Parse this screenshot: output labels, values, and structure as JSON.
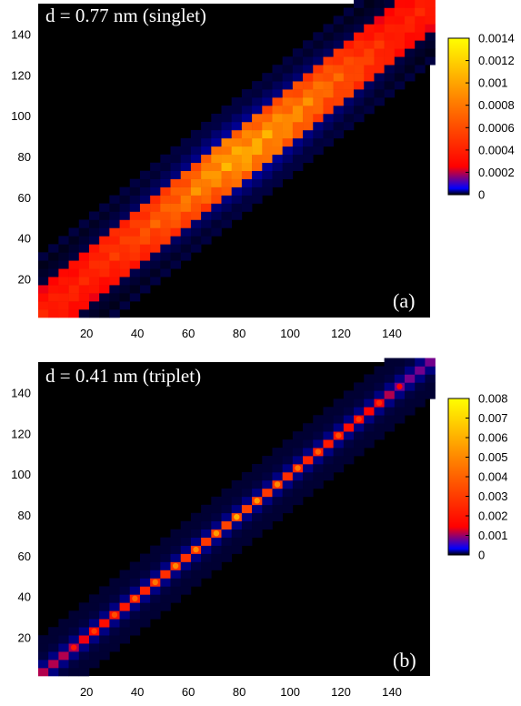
{
  "chart_data": [
    {
      "type": "heatmap",
      "title": "d = 0.77 nm (singlet)",
      "panel_label": "(a)",
      "x_ticks": [
        20,
        40,
        60,
        80,
        100,
        120,
        140
      ],
      "y_ticks": [
        20,
        40,
        60,
        80,
        100,
        120,
        140
      ],
      "xlim": [
        1,
        155
      ],
      "ylim": [
        1,
        155
      ],
      "colorbar": {
        "ticks": [
          0,
          0.0002,
          0.0004,
          0.0006,
          0.0008,
          0.001,
          0.0012,
          0.0014
        ],
        "tick_labels": [
          "0",
          "0.0002",
          "0.0004",
          "0.0006",
          "0.0008",
          "0.001",
          "0.0012",
          "0.0014"
        ],
        "range": [
          0,
          0.0014
        ]
      },
      "colormap": [
        "#000000",
        "#0000ff",
        "#ff0000",
        "#ff8000",
        "#ffff00"
      ],
      "band": {
        "description_values": {
          "diagonal_peak_at": [
            [
              20,
              0.0004
            ],
            [
              40,
              0.0006
            ],
            [
              60,
              0.0008
            ],
            [
              80,
              0.0011
            ],
            [
              100,
              0.0009
            ],
            [
              120,
              0.0007
            ],
            [
              140,
              0.0004
            ]
          ],
          "halfwidth_high": 14,
          "halfwidth_low": 24
        }
      }
    },
    {
      "type": "heatmap",
      "title": "d = 0.41 nm (triplet)",
      "panel_label": "(b)",
      "x_ticks": [
        20,
        40,
        60,
        80,
        100,
        120,
        140
      ],
      "y_ticks": [
        20,
        40,
        60,
        80,
        100,
        120,
        140
      ],
      "xlim": [
        1,
        155
      ],
      "ylim": [
        1,
        155
      ],
      "colorbar": {
        "ticks": [
          0,
          0.001,
          0.002,
          0.003,
          0.004,
          0.005,
          0.006,
          0.007,
          0.008
        ],
        "tick_labels": [
          "0",
          "0.001",
          "0.002",
          "0.003",
          "0.004",
          "0.005",
          "0.006",
          "0.007",
          "0.008"
        ],
        "range": [
          0,
          0.008
        ]
      },
      "colormap": [
        "#000000",
        "#0000ff",
        "#ff0000",
        "#ff8000",
        "#ffff00"
      ],
      "diagonal_peaks": [
        [
          15,
          0.002
        ],
        [
          23,
          0.003
        ],
        [
          31,
          0.0035
        ],
        [
          39,
          0.004
        ],
        [
          47,
          0.0045
        ],
        [
          55,
          0.005
        ],
        [
          63,
          0.005
        ],
        [
          71,
          0.0055
        ],
        [
          79,
          0.006
        ],
        [
          87,
          0.0055
        ],
        [
          95,
          0.005
        ],
        [
          103,
          0.0045
        ],
        [
          111,
          0.004
        ],
        [
          119,
          0.0035
        ],
        [
          127,
          0.003
        ],
        [
          135,
          0.0025
        ],
        [
          143,
          0.0015
        ]
      ]
    }
  ]
}
